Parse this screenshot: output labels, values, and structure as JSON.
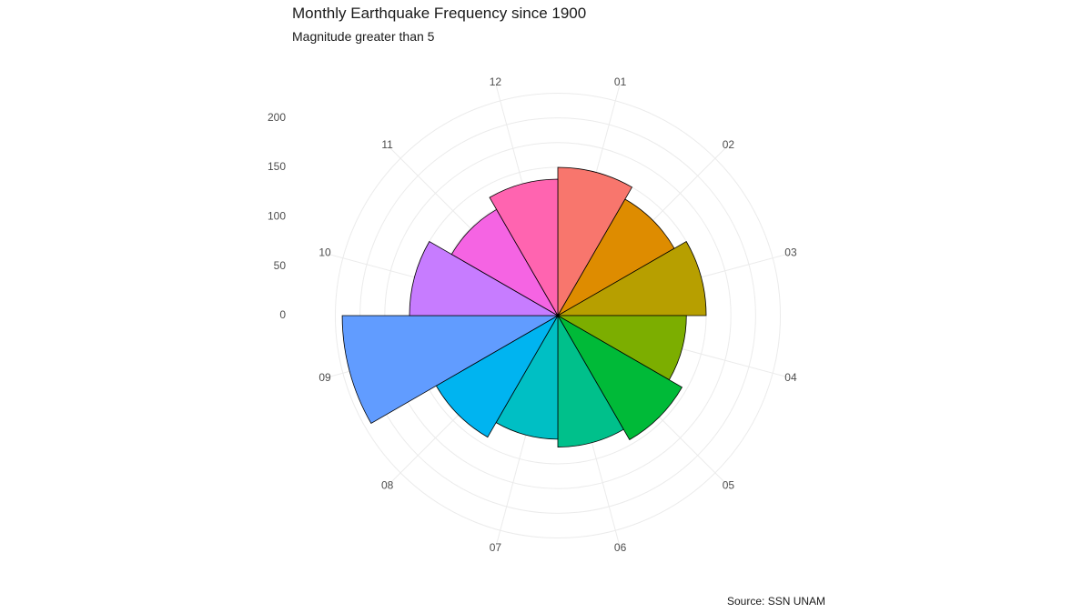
{
  "chart_data": {
    "type": "bar",
    "coordinates": "polar",
    "title": "Monthly Earthquake Frequency since 1900",
    "subtitle": "Magnitude greater than 5",
    "caption": "Source: SSN UNAM",
    "categories": [
      "01",
      "02",
      "03",
      "04",
      "05",
      "06",
      "07",
      "08",
      "09",
      "10",
      "11",
      "12"
    ],
    "values": [
      150,
      136,
      150,
      130,
      145,
      133,
      125,
      142,
      218,
      150,
      124,
      138
    ],
    "radial_ticks": [
      0,
      50,
      100,
      150,
      200
    ],
    "rlim": [
      0,
      242
    ],
    "grid": true,
    "legend": "none",
    "bar_outline": "#000000",
    "colors": [
      "#F8766D",
      "#DE8C00",
      "#B79F00",
      "#7CAE00",
      "#00BA38",
      "#00C08B",
      "#00BFC4",
      "#00B4F0",
      "#619CFF",
      "#C77CFF",
      "#F564E3",
      "#FF64B0"
    ]
  }
}
